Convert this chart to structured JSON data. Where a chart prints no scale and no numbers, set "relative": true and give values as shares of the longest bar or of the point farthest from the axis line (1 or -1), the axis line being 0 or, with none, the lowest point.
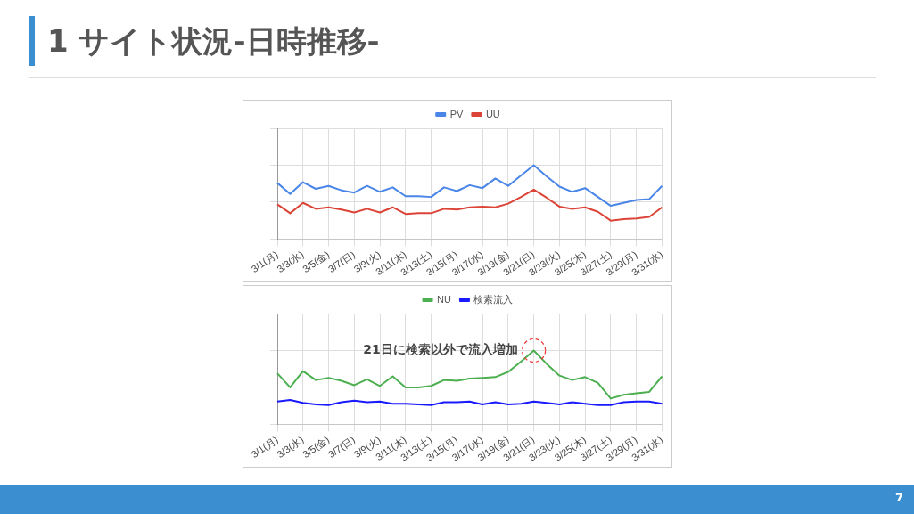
{
  "chart_data": [
    {
      "type": "line",
      "title": "1 サイト状況-日時推移-",
      "relative": true,
      "grid": true,
      "legend": "top",
      "marker": "none",
      "line_style": "solid",
      "annotations": [
        "7"
      ],
      "categories": [
        "3/1(月)",
        null,
        "3/3(水)",
        null,
        "3/5(金)",
        null,
        "3/7(日)",
        null,
        "3/9(火)",
        null,
        "3/11(木)",
        null,
        "3/13(土)",
        null,
        "3/15(月)",
        null,
        "3/17(水)",
        null,
        "3/19(金)",
        null,
        "3/21(日)",
        null,
        "3/23(火)",
        null,
        "3/25(木)",
        null,
        "3/27(土)",
        null,
        "3/29(月)",
        null,
        "3/31(水)"
      ],
      "series": [
        {
          "name": "PV",
          "color": "#4a86e8",
          "values": [
            0.76,
            0.61,
            0.77,
            0.68,
            0.72,
            0.66,
            0.63,
            0.72,
            0.64,
            0.7,
            0.58,
            0.58,
            0.57,
            0.7,
            0.65,
            0.73,
            0.69,
            0.82,
            0.72,
            0.86,
            1,
            0.85,
            0.71,
            0.64,
            0.69,
            0.57,
            0.45,
            0.49,
            0.53,
            0.54,
            0.72
          ]
        },
        {
          "name": "UU",
          "color": "#db4437",
          "values": [
            0.47,
            0.35,
            0.49,
            0.41,
            0.43,
            0.4,
            0.36,
            0.41,
            0.36,
            0.43,
            0.34,
            0.35,
            0.35,
            0.41,
            0.4,
            0.43,
            0.44,
            0.43,
            0.48,
            0.57,
            0.67,
            0.56,
            0.44,
            0.41,
            0.43,
            0.37,
            0.25,
            0.27,
            0.28,
            0.3,
            0.43
          ]
        }
      ]
    },
    {
      "type": "line",
      "relative": true,
      "grid": true,
      "legend": "top",
      "marker": "none",
      "line_style": "solid",
      "annotations": [
        {
          "text": "21日に検索以外で流入増加",
          "x": "3/21(日)",
          "y": 1
        }
      ],
      "categories": [
        "3/1(月)",
        null,
        "3/3(水)",
        null,
        "3/5(金)",
        null,
        "3/7(日)",
        null,
        "3/9(火)",
        null,
        "3/11(木)",
        null,
        "3/13(土)",
        null,
        "3/15(月)",
        null,
        "3/17(水)",
        null,
        "3/19(金)",
        null,
        "3/21(日)",
        null,
        "3/23(火)",
        null,
        "3/25(木)",
        null,
        "3/27(土)",
        null,
        "3/29(月)",
        null,
        "3/31(水)"
      ],
      "series": [
        {
          "name": "NU",
          "color": "#4caf50",
          "values": [
            0.69,
            0.5,
            0.72,
            0.6,
            0.63,
            0.59,
            0.53,
            0.61,
            0.52,
            0.65,
            0.5,
            0.5,
            0.52,
            0.6,
            0.59,
            0.62,
            0.63,
            0.64,
            0.71,
            0.85,
            1,
            0.82,
            0.66,
            0.6,
            0.64,
            0.56,
            0.35,
            0.4,
            0.42,
            0.44,
            0.65
          ]
        },
        {
          "name": "検索流入",
          "color": "#1a1aff",
          "values": [
            0.31,
            0.33,
            0.29,
            0.27,
            0.26,
            0.3,
            0.32,
            0.3,
            0.31,
            0.28,
            0.28,
            0.27,
            0.26,
            0.3,
            0.3,
            0.31,
            0.27,
            0.3,
            0.27,
            0.28,
            0.31,
            0.29,
            0.27,
            0.3,
            0.28,
            0.26,
            0.26,
            0.3,
            0.31,
            0.31,
            0.28
          ]
        }
      ]
    }
  ]
}
